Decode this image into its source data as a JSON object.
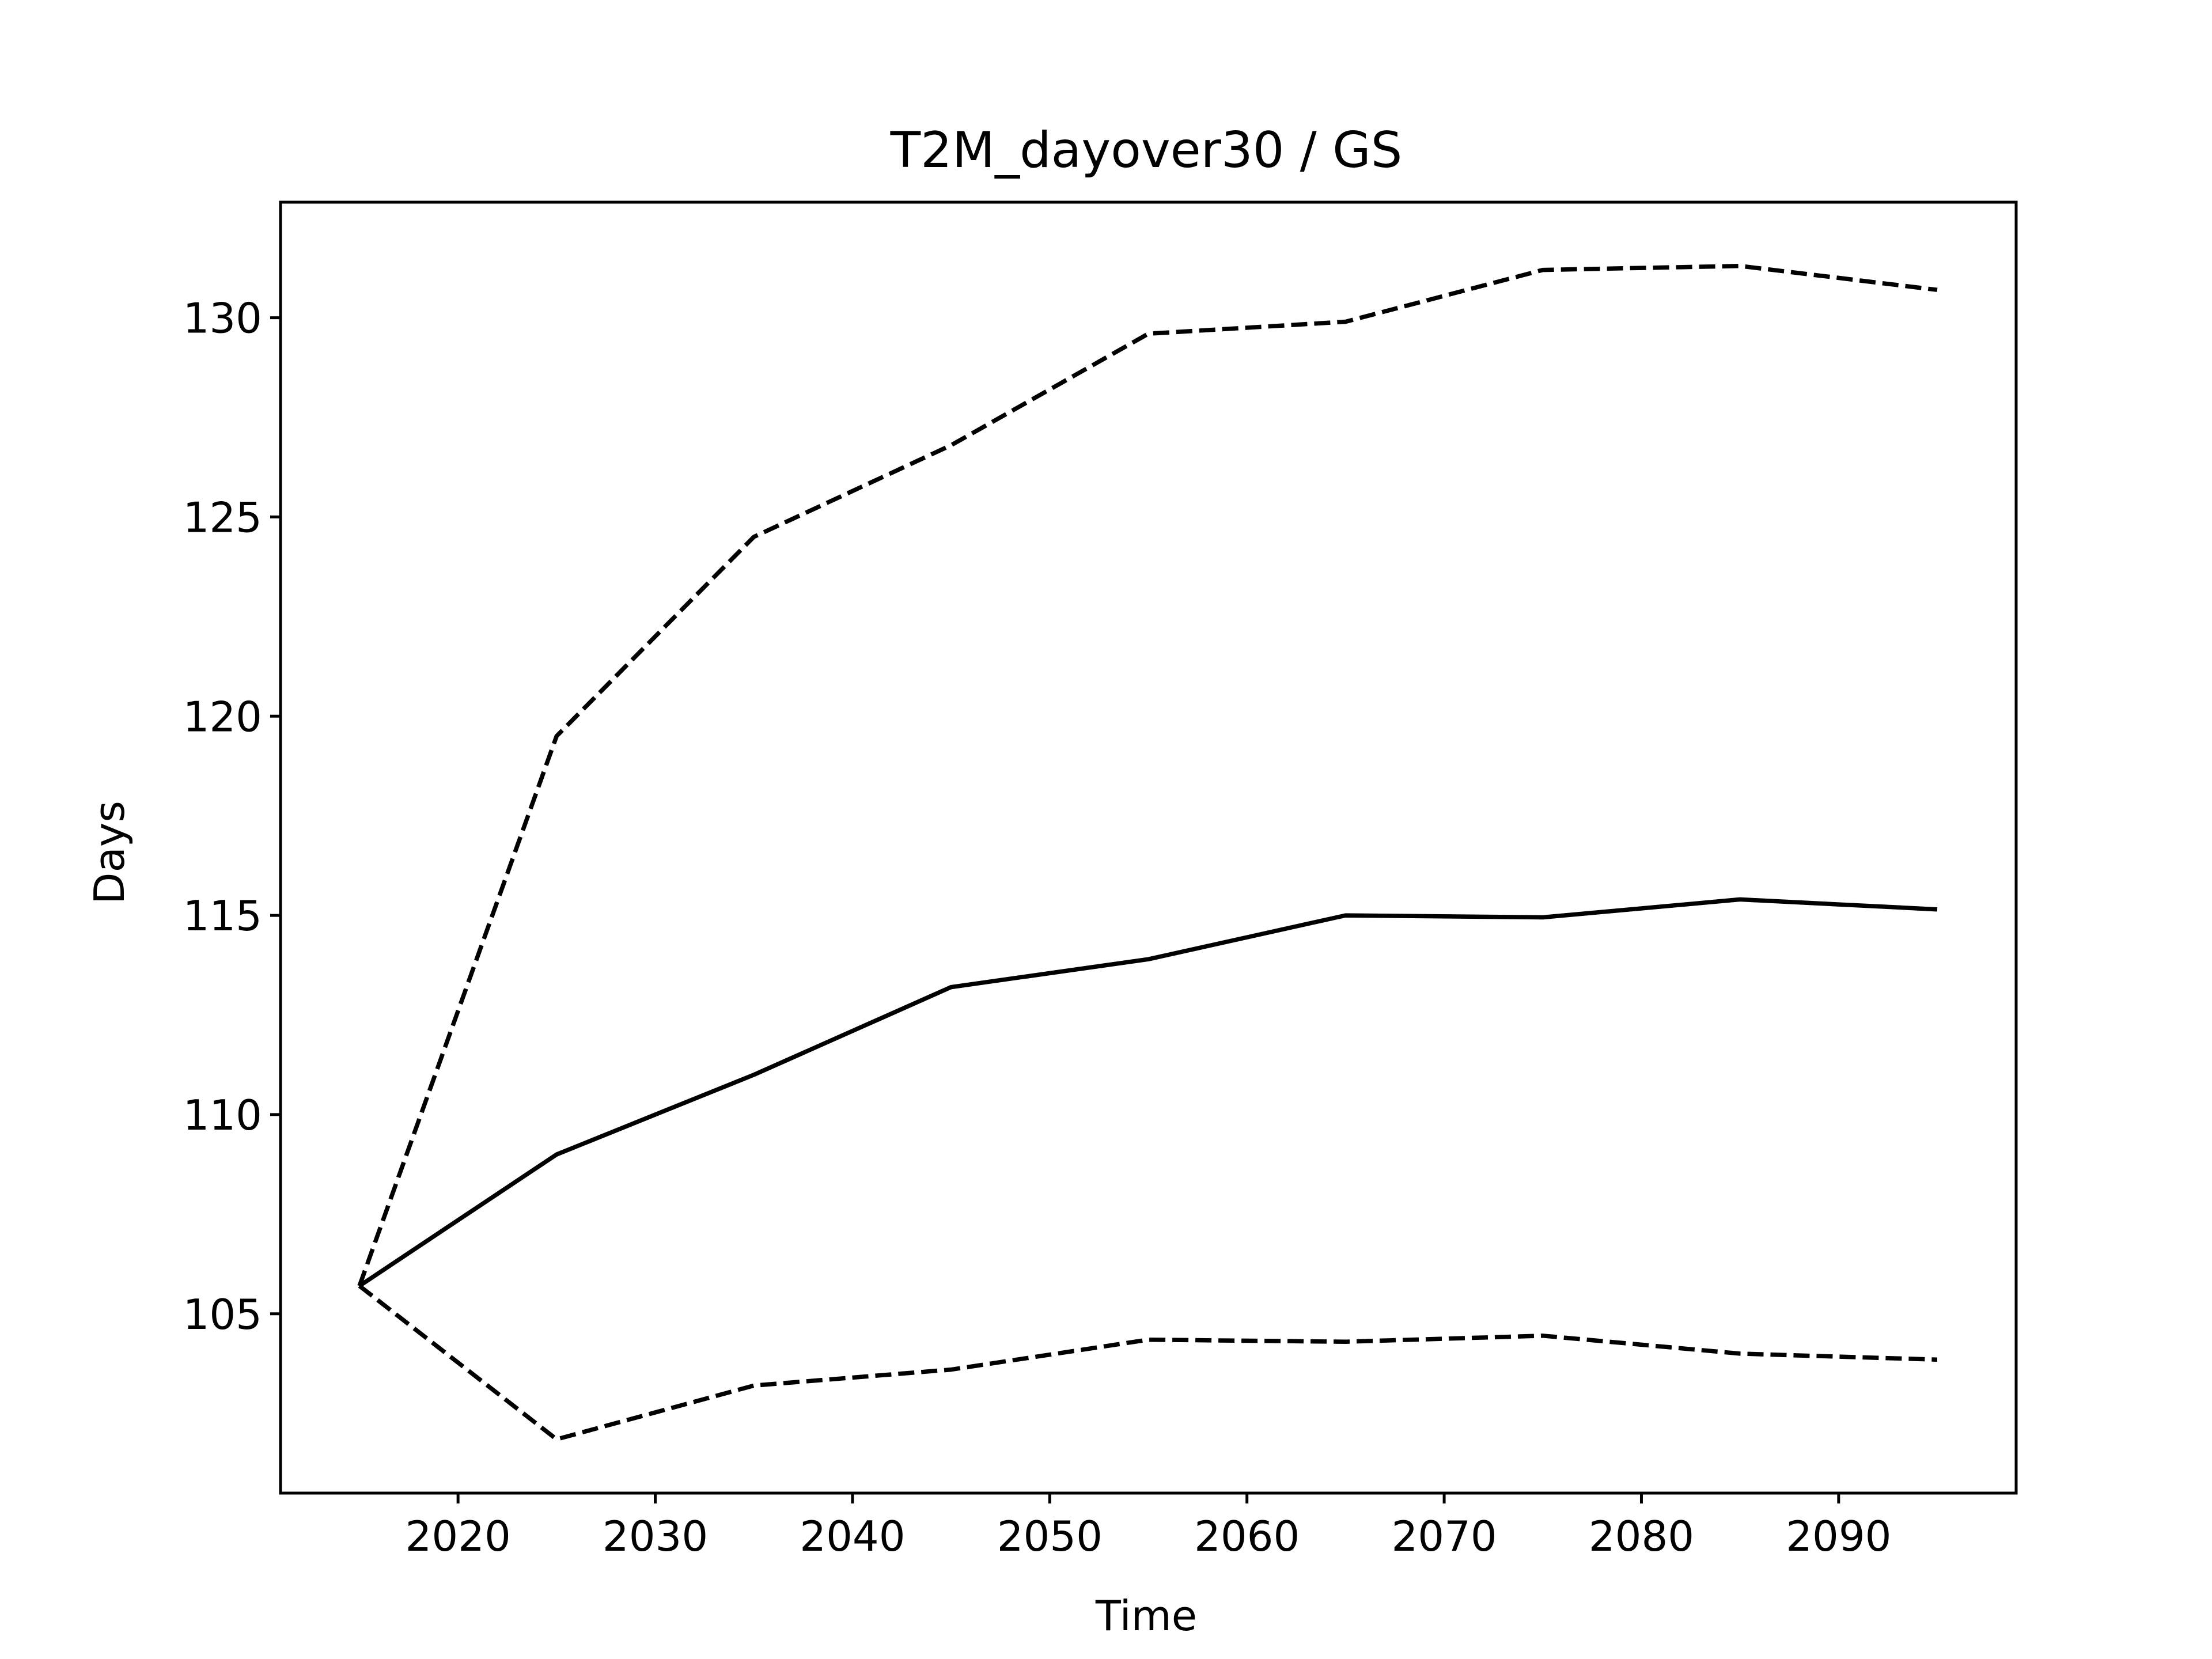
{
  "chart_data": {
    "type": "line",
    "title": "T2M_dayover30 / GS",
    "xlabel": "Time",
    "ylabel": "Days",
    "xlim": [
      2011,
      2099
    ],
    "ylim": [
      100.5,
      132.9
    ],
    "xticks": [
      2020,
      2030,
      2040,
      2050,
      2060,
      2070,
      2080,
      2090
    ],
    "yticks": [
      105,
      110,
      115,
      120,
      125,
      130
    ],
    "grid": false,
    "legend": "none",
    "x": [
      2015,
      2025,
      2035,
      2045,
      2055,
      2065,
      2075,
      2085,
      2095
    ],
    "series": [
      {
        "style": "solid",
        "color": "#000000",
        "values": [
          105.7,
          109.0,
          111.0,
          113.2,
          113.9,
          115.0,
          114.95,
          115.4,
          115.15
        ]
      },
      {
        "style": "dashed",
        "color": "#000000",
        "values": [
          105.7,
          119.5,
          124.5,
          126.8,
          129.6,
          129.9,
          131.2,
          131.3,
          130.7
        ]
      },
      {
        "style": "dashed",
        "color": "#000000",
        "values": [
          105.7,
          101.85,
          103.2,
          103.6,
          104.35,
          104.3,
          104.45,
          104.0,
          103.85
        ]
      }
    ]
  }
}
